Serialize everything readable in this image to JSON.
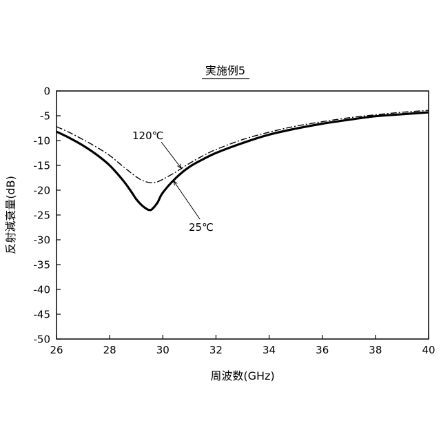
{
  "chart_data": {
    "type": "line",
    "title": "実施例5",
    "xlabel": "周波数(GHz)",
    "ylabel": "反射減衰量(dB)",
    "xlim": [
      26,
      40
    ],
    "ylim": [
      -50,
      0
    ],
    "xticks": [
      "26",
      "28",
      "30",
      "32",
      "34",
      "36",
      "38",
      "40"
    ],
    "yticks": [
      "0",
      "-5",
      "-10",
      "-15",
      "-20",
      "-25",
      "-30",
      "-35",
      "-40",
      "-45",
      "-50"
    ],
    "grid": false,
    "series": [
      {
        "name": "25℃",
        "style": "solid-thick",
        "x": [
          26,
          26.5,
          27,
          27.5,
          28,
          28.5,
          28.8,
          29.0,
          29.2,
          29.4,
          29.5,
          29.6,
          29.8,
          30.0,
          30.5,
          31,
          31.5,
          32,
          33,
          34,
          35,
          36,
          37,
          38,
          39,
          40
        ],
        "y": [
          -8.2,
          -9.5,
          -11.0,
          -12.8,
          -15.0,
          -18.0,
          -20.2,
          -21.8,
          -23.0,
          -23.8,
          -24.0,
          -23.8,
          -22.5,
          -20.5,
          -17.5,
          -15.3,
          -13.8,
          -12.5,
          -10.5,
          -8.8,
          -7.6,
          -6.6,
          -5.8,
          -5.1,
          -4.7,
          -4.3
        ]
      },
      {
        "name": "120℃",
        "style": "dash-dot",
        "x": [
          26,
          26.5,
          27,
          27.5,
          28,
          28.5,
          29.0,
          29.3,
          29.6,
          29.8,
          30.0,
          30.5,
          31,
          31.5,
          32,
          33,
          34,
          35,
          36,
          37,
          38,
          39,
          40
        ],
        "y": [
          -7.2,
          -8.4,
          -9.8,
          -11.3,
          -13.0,
          -15.2,
          -17.3,
          -18.2,
          -18.5,
          -18.3,
          -17.8,
          -16.3,
          -14.6,
          -13.1,
          -11.8,
          -9.8,
          -8.3,
          -7.1,
          -6.2,
          -5.4,
          -4.8,
          -4.3,
          -3.9
        ]
      }
    ],
    "annotations": [
      {
        "text": "120℃",
        "series": "120℃",
        "at_x": 30.7
      },
      {
        "text": "25℃",
        "series": "25℃",
        "at_x": 30.4
      }
    ]
  }
}
